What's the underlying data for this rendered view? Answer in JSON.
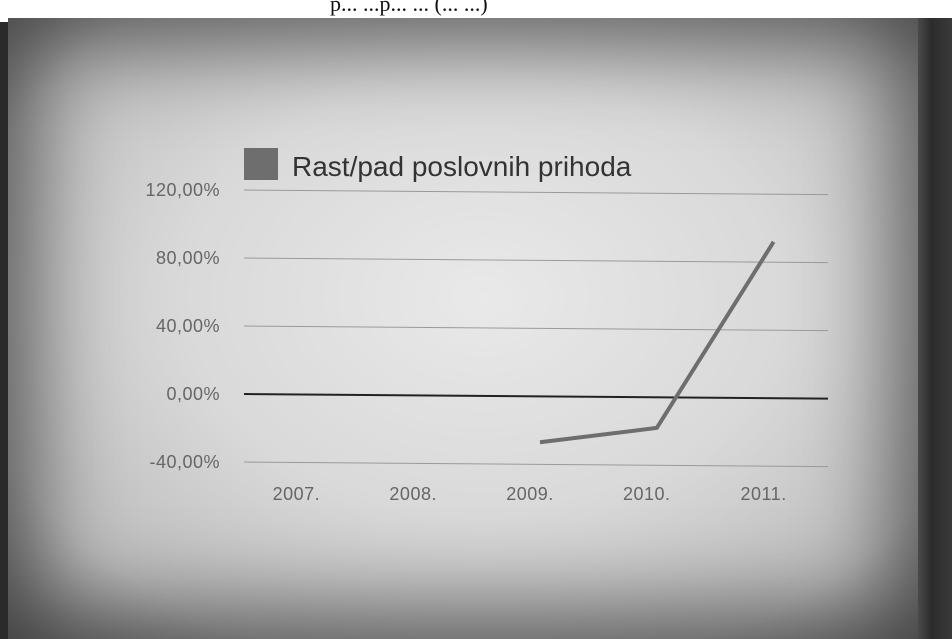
{
  "caption_fragment": "p... ...p... ... (... ...)",
  "chart_data": {
    "type": "line",
    "title": "",
    "xlabel": "",
    "ylabel": "",
    "categories": [
      "2007.",
      "2008.",
      "2009.",
      "2010.",
      "2011."
    ],
    "series": [
      {
        "name": "Rast/pad poslovnih prihoda",
        "values": [
          null,
          null,
          -27,
          -18,
          92
        ],
        "color": "#6e6e6e"
      }
    ],
    "y_ticks": [
      "120,00%",
      "80,00%",
      "40,00%",
      "0,00%",
      "-40,00%"
    ],
    "y_tick_values": [
      120,
      80,
      40,
      0,
      -40
    ],
    "ylim": [
      -40,
      120
    ],
    "grid": true,
    "legend_position": "top-left"
  }
}
